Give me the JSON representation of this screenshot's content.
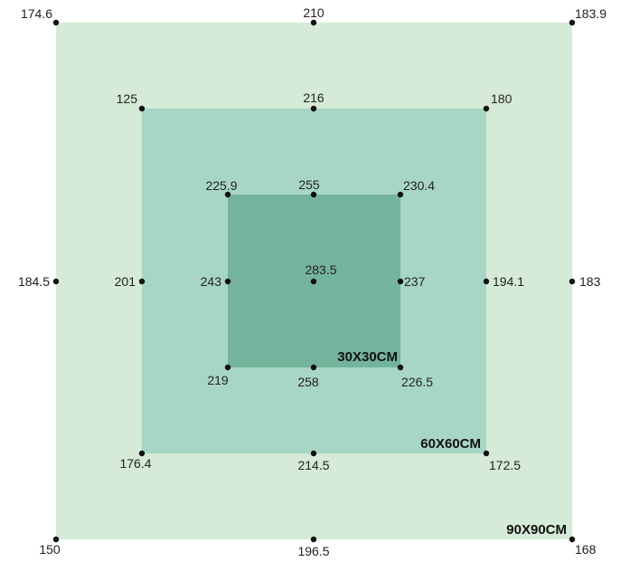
{
  "colors": {
    "outer_fill": "#d5ead7",
    "middle_fill": "#a8d6c4",
    "inner_fill": "#74b39c",
    "point": "#111111"
  },
  "squares": {
    "outer": {
      "label": "90X90CM"
    },
    "middle": {
      "label": "60X60CM"
    },
    "inner": {
      "label": "30X30CM"
    }
  },
  "points": {
    "outer": {
      "top_left": "174.6",
      "top_mid": "210",
      "top_right": "183.9",
      "mid_left": "184.5",
      "mid_right": "183",
      "bottom_left": "150",
      "bottom_mid": "196.5",
      "bottom_right": "168"
    },
    "middle": {
      "top_left": "125",
      "top_mid": "216",
      "top_right": "180",
      "mid_left": "201",
      "mid_right": "194.1",
      "bottom_left": "176.4",
      "bottom_mid": "214.5",
      "bottom_right": "172.5"
    },
    "inner": {
      "top_left": "225.9",
      "top_mid": "255",
      "top_right": "230.4",
      "mid_left": "243",
      "center": "283.5",
      "mid_right": "237",
      "bottom_left": "219",
      "bottom_mid": "258",
      "bottom_right": "226.5"
    }
  }
}
